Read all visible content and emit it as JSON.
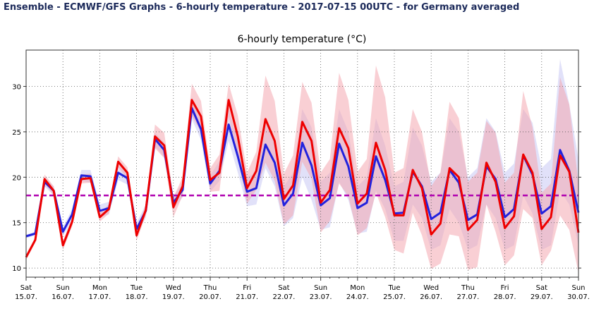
{
  "header": {
    "title": "Ensemble - ECMWF/GFS Graphs - 6-hourly temperature - 2017-07-15 00UTC - for Germany averaged"
  },
  "chart_data": {
    "type": "line",
    "title": "6-hourly temperature (°C)",
    "xlabel": "",
    "ylabel": "",
    "ylim": [
      9,
      34
    ],
    "yticks": [
      10,
      15,
      20,
      25,
      30
    ],
    "grid": true,
    "x_ticks": [
      {
        "day": "Sat",
        "date": "15.07."
      },
      {
        "day": "Sun",
        "date": "16.07."
      },
      {
        "day": "Mon",
        "date": "17.07."
      },
      {
        "day": "Tue",
        "date": "18.07."
      },
      {
        "day": "Wed",
        "date": "19.07."
      },
      {
        "day": "Thu",
        "date": "20.07."
      },
      {
        "day": "Fri",
        "date": "21.07."
      },
      {
        "day": "Sat",
        "date": "22.07."
      },
      {
        "day": "Sun",
        "date": "23.07."
      },
      {
        "day": "Mon",
        "date": "24.07."
      },
      {
        "day": "Tue",
        "date": "25.07."
      },
      {
        "day": "Wed",
        "date": "26.07."
      },
      {
        "day": "Thu",
        "date": "27.07."
      },
      {
        "day": "Fri",
        "date": "28.07."
      },
      {
        "day": "Sat",
        "date": "29.07."
      },
      {
        "day": "Sun",
        "date": "30.07."
      }
    ],
    "x_step_hours": 6,
    "reference_line": {
      "value": 18,
      "color": "#b000b0"
    },
    "series": [
      {
        "color": "#2222dd",
        "values": [
          13.5,
          13.8,
          19.5,
          18.5,
          14,
          15.9,
          20.2,
          20.1,
          16.3,
          16.6,
          20.5,
          19.9,
          14.3,
          16.3,
          24.2,
          23,
          17.2,
          18.6,
          27.6,
          25.3,
          19.3,
          20.7,
          25.8,
          22.3,
          18.4,
          18.8,
          23.6,
          21.6,
          16.9,
          18.2,
          23.8,
          21.3,
          16.9,
          17.7,
          23.7,
          21.2,
          16.6,
          17.2,
          22.3,
          19.7,
          16,
          16.1,
          20.6,
          19,
          15.4,
          16.1,
          20.8,
          19.4,
          15.3,
          15.9,
          21.2,
          19.8,
          15.6,
          16.5,
          22.4,
          20.3,
          16,
          16.8,
          23,
          20.7,
          16.1
        ]
      },
      {
        "color": "#ee0000",
        "values": [
          11.2,
          13.1,
          19.8,
          18.5,
          12.5,
          15.1,
          19.8,
          19.9,
          15.6,
          16.5,
          21.7,
          20.5,
          13.6,
          16.4,
          24.5,
          23.5,
          16.7,
          19,
          28.5,
          26.7,
          19.7,
          20.5,
          28.5,
          24.5,
          18.8,
          20.7,
          26.4,
          24,
          17.6,
          19.1,
          26.1,
          24,
          17.2,
          18.6,
          25.4,
          23.2,
          17.1,
          18.2,
          23.8,
          20.8,
          15.8,
          15.8,
          20.8,
          18.8,
          13.7,
          14.9,
          21,
          20,
          14.2,
          15.3,
          21.6,
          19.5,
          14.4,
          15.7,
          22.5,
          20.5,
          14.3,
          15.6,
          22.4,
          20.6,
          13.9
        ]
      }
    ],
    "bands": [
      {
        "color": "#c8c8f4",
        "upper": [
          13.7,
          14,
          20,
          19,
          14.5,
          16.5,
          20.8,
          20.8,
          17,
          17.3,
          21.3,
          20.6,
          15,
          17,
          24.9,
          23.8,
          17.9,
          19.4,
          28.8,
          26.5,
          20.2,
          21.8,
          27.5,
          24,
          20,
          20.5,
          26,
          24,
          19,
          20.5,
          27.5,
          25.5,
          19.5,
          20.5,
          27.5,
          25,
          19,
          20,
          26.5,
          23.5,
          19,
          19.5,
          25.5,
          23.5,
          19.5,
          20.5,
          26.5,
          25,
          20,
          21,
          26.5,
          25,
          20.5,
          21.5,
          27.5,
          26,
          21,
          22,
          33,
          28,
          22
        ],
        "lower": [
          13.3,
          13.6,
          19,
          18,
          13.5,
          15.3,
          19.6,
          19.4,
          15.6,
          15.9,
          19.7,
          19.2,
          13.6,
          15.6,
          23.4,
          22.2,
          16.5,
          17.8,
          26.4,
          24.1,
          18.4,
          19.6,
          24,
          20.5,
          16.8,
          17,
          21,
          19,
          14.6,
          15.5,
          20,
          17.5,
          14.2,
          14.5,
          19.5,
          17.5,
          13.8,
          14,
          18.5,
          16.5,
          13,
          13,
          17,
          15.5,
          12,
          12.5,
          16.5,
          15,
          12,
          12.5,
          17,
          15.5,
          12,
          12.5,
          18,
          16,
          12,
          12.5,
          18.5,
          17,
          12.5
        ]
      },
      {
        "color": "#f4a8b0",
        "upper": [
          11.5,
          13.4,
          20.3,
          19,
          13,
          15.6,
          20.3,
          20.4,
          16.1,
          17,
          22.3,
          21.1,
          14.2,
          17,
          25.8,
          24.9,
          17.8,
          20,
          30.3,
          28.4,
          21,
          22.5,
          30.3,
          26.8,
          20.5,
          22.8,
          31.2,
          28.4,
          20.4,
          22.4,
          30.5,
          28.2,
          20.5,
          22,
          31.5,
          28.5,
          20.6,
          22,
          32.3,
          28.8,
          20.5,
          21,
          27.5,
          25,
          19,
          20.5,
          28.3,
          26.5,
          19.5,
          20.5,
          26.2,
          24.9,
          19.4,
          20.5,
          29.5,
          25.5,
          18.3,
          19.3,
          31,
          28,
          19.3
        ],
        "lower": [
          10.9,
          12.8,
          19.3,
          18,
          12,
          14.6,
          19.3,
          19.4,
          15.1,
          16,
          21.1,
          19.9,
          13,
          15.8,
          23.2,
          22.1,
          15.6,
          18,
          26.7,
          25,
          18.4,
          18.5,
          26.7,
          22.2,
          17.1,
          18.6,
          21.6,
          19.6,
          14.8,
          15.8,
          21.7,
          19.8,
          13.9,
          15.2,
          19.3,
          17.9,
          13.6,
          14.4,
          18.3,
          15.6,
          12,
          11.6,
          16.1,
          13.6,
          9.9,
          10.5,
          13.7,
          13.5,
          9.8,
          10.1,
          17,
          14,
          10.3,
          11.4,
          16.5,
          15.5,
          10.3,
          11.9,
          15.8,
          14.2,
          9.5
        ]
      }
    ]
  }
}
